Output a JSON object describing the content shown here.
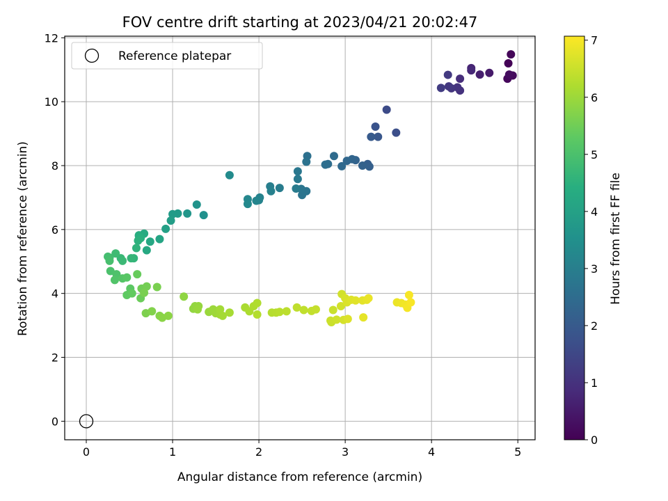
{
  "chart_data": {
    "type": "scatter",
    "title": "FOV centre drift starting at 2023/04/21 20:02:47",
    "xlabel": "Angular distance from reference (arcmin)",
    "ylabel": "Rotation from reference (arcmin)",
    "xlim": [
      -0.25,
      5.2
    ],
    "ylim": [
      -0.58,
      12.05
    ],
    "xticks": [
      0,
      1,
      2,
      3,
      4,
      5
    ],
    "yticks": [
      0,
      2,
      4,
      6,
      8,
      10,
      12
    ],
    "grid": true,
    "legend": {
      "placement": "upper-left",
      "entries": [
        "Reference platepar"
      ]
    },
    "reference_point": {
      "x": 0,
      "y": 0
    },
    "colorbar": {
      "label": "Hours from first FF file",
      "colormap": "viridis",
      "range": [
        0,
        7.07
      ],
      "ticks": [
        0,
        1,
        2,
        3,
        4,
        5,
        6,
        7
      ]
    },
    "points": [
      [
        4.89,
        11.2,
        0.05
      ],
      [
        4.92,
        11.48,
        0.1
      ],
      [
        4.88,
        10.72,
        0.15
      ],
      [
        4.94,
        10.82,
        0.2
      ],
      [
        4.9,
        10.85,
        0.25
      ],
      [
        4.67,
        10.9,
        0.5
      ],
      [
        4.56,
        10.85,
        0.6
      ],
      [
        4.46,
        11.05,
        0.7
      ],
      [
        4.46,
        10.98,
        0.8
      ],
      [
        4.33,
        10.72,
        0.9
      ],
      [
        4.33,
        10.35,
        1.0
      ],
      [
        4.3,
        10.45,
        1.05
      ],
      [
        4.23,
        10.42,
        1.1
      ],
      [
        4.2,
        10.48,
        1.15
      ],
      [
        4.19,
        10.84,
        1.2
      ],
      [
        4.11,
        10.43,
        1.25
      ],
      [
        3.48,
        9.75,
        1.6
      ],
      [
        3.59,
        9.03,
        1.7
      ],
      [
        3.35,
        9.22,
        1.8
      ],
      [
        3.38,
        8.9,
        1.9
      ],
      [
        3.3,
        8.9,
        2.0
      ],
      [
        3.26,
        8.05,
        2.1
      ],
      [
        3.28,
        7.97,
        2.15
      ],
      [
        3.2,
        8.0,
        2.2
      ],
      [
        3.12,
        8.17,
        2.25
      ],
      [
        3.08,
        8.2,
        2.3
      ],
      [
        3.02,
        8.15,
        2.35
      ],
      [
        2.96,
        7.98,
        2.4
      ],
      [
        2.87,
        8.3,
        2.45
      ],
      [
        2.8,
        8.05,
        2.5
      ],
      [
        2.77,
        8.03,
        2.55
      ],
      [
        2.56,
        8.3,
        2.6
      ],
      [
        2.55,
        8.12,
        2.65
      ],
      [
        2.55,
        7.2,
        2.7
      ],
      [
        2.5,
        7.08,
        2.72
      ],
      [
        2.49,
        7.27,
        2.75
      ],
      [
        2.45,
        7.82,
        2.8
      ],
      [
        2.45,
        7.58,
        2.85
      ],
      [
        2.43,
        7.28,
        2.9
      ],
      [
        2.24,
        7.3,
        2.95
      ],
      [
        2.13,
        7.35,
        3.0
      ],
      [
        2.14,
        7.2,
        3.05
      ],
      [
        2.01,
        7.0,
        3.1
      ],
      [
        2.0,
        6.92,
        3.15
      ],
      [
        1.97,
        6.9,
        3.2
      ],
      [
        1.87,
        6.95,
        3.25
      ],
      [
        1.87,
        6.8,
        3.3
      ],
      [
        1.66,
        7.7,
        3.35
      ],
      [
        1.36,
        6.45,
        3.5
      ],
      [
        1.28,
        6.78,
        3.6
      ],
      [
        1.17,
        6.5,
        3.7
      ],
      [
        1.06,
        6.5,
        3.8
      ],
      [
        1.0,
        6.48,
        3.85
      ],
      [
        0.98,
        6.28,
        3.9
      ],
      [
        0.92,
        6.02,
        4.0
      ],
      [
        0.85,
        5.7,
        4.1
      ],
      [
        0.74,
        5.62,
        4.2
      ],
      [
        0.7,
        5.35,
        4.25
      ],
      [
        0.67,
        5.87,
        4.3
      ],
      [
        0.61,
        5.8,
        4.35
      ],
      [
        0.61,
        5.82,
        4.4
      ],
      [
        0.63,
        5.73,
        4.45
      ],
      [
        0.6,
        5.65,
        4.5
      ],
      [
        0.58,
        5.42,
        4.55
      ],
      [
        0.55,
        5.1,
        4.6
      ],
      [
        0.52,
        5.1,
        4.65
      ],
      [
        0.4,
        5.1,
        4.7
      ],
      [
        0.42,
        5.02,
        4.75
      ],
      [
        0.34,
        5.25,
        4.8
      ],
      [
        0.27,
        5.12,
        4.85
      ],
      [
        0.25,
        5.15,
        4.9
      ],
      [
        0.27,
        5.02,
        4.95
      ],
      [
        0.28,
        4.7,
        5.0
      ],
      [
        0.35,
        4.6,
        5.05
      ],
      [
        0.33,
        4.42,
        5.1
      ],
      [
        0.42,
        4.47,
        5.15
      ],
      [
        0.47,
        4.5,
        5.2
      ],
      [
        0.51,
        4.15,
        5.25
      ],
      [
        0.47,
        3.95,
        5.3
      ],
      [
        0.53,
        4.0,
        5.35
      ],
      [
        0.59,
        4.6,
        5.4
      ],
      [
        0.63,
        3.85,
        5.45
      ],
      [
        0.64,
        4.15,
        5.5
      ],
      [
        0.7,
        4.22,
        5.55
      ],
      [
        0.67,
        4.02,
        5.6
      ],
      [
        0.82,
        4.2,
        5.62
      ],
      [
        0.69,
        3.38,
        5.65
      ],
      [
        0.76,
        3.44,
        5.7
      ],
      [
        0.85,
        3.3,
        5.75
      ],
      [
        0.88,
        3.24,
        5.8
      ],
      [
        0.95,
        3.3,
        5.82
      ],
      [
        1.13,
        3.9,
        5.85
      ],
      [
        1.24,
        3.52,
        5.88
      ],
      [
        1.26,
        3.6,
        5.9
      ],
      [
        1.3,
        3.6,
        5.92
      ],
      [
        1.29,
        3.5,
        5.95
      ],
      [
        1.42,
        3.42,
        5.97
      ],
      [
        1.47,
        3.5,
        6.0
      ],
      [
        1.5,
        3.38,
        6.02
      ],
      [
        1.55,
        3.34,
        6.05
      ],
      [
        1.55,
        3.5,
        6.07
      ],
      [
        1.58,
        3.3,
        6.1
      ],
      [
        1.66,
        3.4,
        6.12
      ],
      [
        1.84,
        3.56,
        6.15
      ],
      [
        1.89,
        3.44,
        6.18
      ],
      [
        1.94,
        3.6,
        6.2
      ],
      [
        1.98,
        3.7,
        6.22
      ],
      [
        1.98,
        3.34,
        6.25
      ],
      [
        2.15,
        3.4,
        6.28
      ],
      [
        2.2,
        3.4,
        6.3
      ],
      [
        2.24,
        3.42,
        6.32
      ],
      [
        2.32,
        3.44,
        6.35
      ],
      [
        2.44,
        3.56,
        6.38
      ],
      [
        2.52,
        3.48,
        6.4
      ],
      [
        2.61,
        3.45,
        6.42
      ],
      [
        2.66,
        3.5,
        6.45
      ],
      [
        2.84,
        3.1,
        6.48
      ],
      [
        2.86,
        3.48,
        6.5
      ],
      [
        2.83,
        3.15,
        6.52
      ],
      [
        2.9,
        3.18,
        6.55
      ],
      [
        2.96,
        3.98,
        6.58
      ],
      [
        2.95,
        3.6,
        6.6
      ],
      [
        2.98,
        3.17,
        6.62
      ],
      [
        3.0,
        3.85,
        6.65
      ],
      [
        3.02,
        3.72,
        6.68
      ],
      [
        3.03,
        3.2,
        6.7
      ],
      [
        3.07,
        3.8,
        6.72
      ],
      [
        3.12,
        3.78,
        6.75
      ],
      [
        3.2,
        3.78,
        6.78
      ],
      [
        3.21,
        3.25,
        6.8
      ],
      [
        3.25,
        3.8,
        6.82
      ],
      [
        3.27,
        3.85,
        6.85
      ],
      [
        3.6,
        3.72,
        6.88
      ],
      [
        3.65,
        3.7,
        6.92
      ],
      [
        3.7,
        3.65,
        6.95
      ],
      [
        3.72,
        3.55,
        6.98
      ],
      [
        3.74,
        3.95,
        7.0
      ],
      [
        3.76,
        3.72,
        7.02
      ]
    ]
  }
}
